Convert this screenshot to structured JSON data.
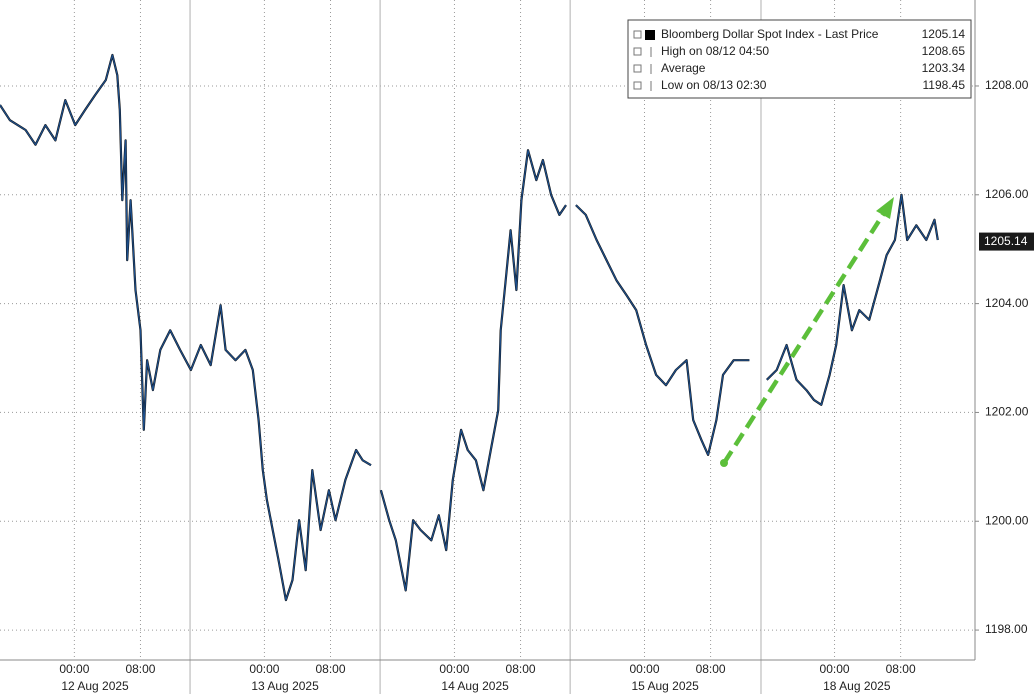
{
  "chart_data": {
    "type": "line",
    "x": [
      -9.0,
      -7.8,
      -5.9,
      -4.7,
      -3.5,
      -2.3,
      -1.1,
      0.1,
      1.3,
      2.5,
      3.8,
      4.6,
      5.2,
      5.5,
      5.8,
      6.2,
      6.4,
      6.8,
      7.4,
      8.0,
      8.4,
      8.8,
      9.5,
      10.4,
      11.6,
      12.8,
      14.1,
      15.3,
      16.5,
      17.7,
      18.3,
      19.5,
      20.7,
      21.6,
      22.3,
      22.8,
      23.3,
      24.0,
      24.7,
      25.6,
      26.4,
      27.2,
      28.0,
      28.8,
      29.8,
      30.8,
      31.6,
      32.8,
      34.1,
      34.9,
      35.9,
      36.5,
      37.1,
      38.1,
      38.9,
      40.1,
      41.0,
      41.9,
      43.2,
      44.1,
      45.0,
      45.8,
      46.8,
      47.6,
      48.6,
      49.5,
      50.4,
      51.3,
      51.6,
      52.2,
      52.8,
      53.5,
      54.1,
      54.9,
      55.9,
      56.7,
      57.7,
      58.7,
      59.5,
      60.0,
      60.7,
      61.9,
      63.2,
      64.4,
      65.6,
      66.8,
      68.0,
      69.2,
      70.4,
      71.6,
      72.8,
      74.1,
      74.9,
      75.9,
      76.7,
      77.7,
      78.5,
      79.8,
      81.7,
      83.0,
      83.8,
      85.0,
      86.2,
      87.4,
      88.6,
      89.5,
      90.4,
      91.4,
      92.2,
      93.1,
      94.1,
      95.0,
      96.2,
      97.5,
      98.3,
      99.3,
      100.1,
      100.8,
      101.9,
      103.1,
      104.1,
      104.5
    ],
    "series": [
      {
        "name": "Bloomberg Dollar Spot Index - Last Price",
        "color": "#1d4f8c",
        "values": [
          1207.65,
          1207.37,
          1207.19,
          1206.92,
          1207.28,
          1207.0,
          1207.74,
          1207.28,
          1207.56,
          1207.83,
          1208.11,
          1208.57,
          1208.2,
          1207.56,
          1205.9,
          1207.0,
          1204.8,
          1205.9,
          1204.25,
          1203.51,
          1201.68,
          1202.96,
          1202.41,
          1203.15,
          1203.51,
          1203.15,
          1202.78,
          1203.24,
          1202.87,
          1203.97,
          1203.15,
          1202.96,
          1203.15,
          1202.78,
          1201.86,
          1200.94,
          1200.39,
          1199.84,
          1199.29,
          1198.55,
          1198.92,
          1200.02,
          1199.1,
          1200.94,
          1199.84,
          1200.57,
          1200.02,
          1200.76,
          1201.31,
          1201.12,
          1201.03,
          null,
          1200.57,
          1200.02,
          1199.65,
          1198.73,
          1200.02,
          1199.84,
          1199.65,
          1200.11,
          1199.47,
          1200.76,
          1201.68,
          1201.31,
          1201.12,
          1200.57,
          1201.31,
          1202.04,
          1203.51,
          1204.43,
          1205.35,
          1204.25,
          1205.9,
          1206.82,
          1206.27,
          1206.64,
          1206.0,
          1205.63,
          1205.81,
          null,
          1205.81,
          1205.63,
          1205.17,
          1204.8,
          1204.43,
          1204.16,
          1203.88,
          1203.24,
          1202.69,
          1202.5,
          1202.78,
          1202.96,
          1201.86,
          1201.49,
          1201.22,
          1201.86,
          1202.69,
          1202.96,
          1202.96,
          null,
          1202.6,
          1202.78,
          1203.24,
          1202.6,
          1202.41,
          1202.23,
          1202.14,
          1202.69,
          1203.24,
          1204.34,
          1203.51,
          1203.88,
          1203.7,
          1204.43,
          1204.89,
          1205.17,
          1206.0,
          1205.17,
          1205.44,
          1205.17,
          1205.54,
          1205.17
        ]
      }
    ],
    "xlim": [
      -9,
      109
    ],
    "ylim": [
      1197.45,
      1209.58
    ],
    "xticks": [
      {
        "value": 0,
        "label": "00:00"
      },
      {
        "value": 8,
        "label": "08:00"
      },
      {
        "value": 23,
        "label": "00:00"
      },
      {
        "value": 31,
        "label": "08:00"
      },
      {
        "value": 46,
        "label": "00:00"
      },
      {
        "value": 54,
        "label": "08:00"
      },
      {
        "value": 69,
        "label": "00:00"
      },
      {
        "value": 77,
        "label": "08:00"
      },
      {
        "value": 92,
        "label": "00:00"
      },
      {
        "value": 100,
        "label": "08:00"
      }
    ],
    "date_ticks": [
      {
        "value": 2.5,
        "label": "12 Aug 2025"
      },
      {
        "value": 25.5,
        "label": "13 Aug 2025"
      },
      {
        "value": 48.5,
        "label": "14 Aug 2025"
      },
      {
        "value": 71.5,
        "label": "15 Aug 2025"
      },
      {
        "value": 94.7,
        "label": "18 Aug 2025"
      }
    ],
    "yticks": [
      {
        "value": 1198,
        "label": "1198.00"
      },
      {
        "value": 1200,
        "label": "1200.00"
      },
      {
        "value": 1202,
        "label": "1202.00"
      },
      {
        "value": 1204,
        "label": "1204.00"
      },
      {
        "value": 1206,
        "label": "1206.00"
      },
      {
        "value": 1208,
        "label": "1208.00"
      }
    ],
    "grid": true,
    "legend_entries": [
      {
        "label": "Bloomberg Dollar Spot Index - Last Price",
        "value": 1205.14
      },
      {
        "label": "High on 08/12 04:50",
        "value": 1208.65
      },
      {
        "label": "Average",
        "value": 1203.34
      },
      {
        "label": "Low on 08/13 02:30",
        "value": 1198.45
      }
    ]
  }
}
